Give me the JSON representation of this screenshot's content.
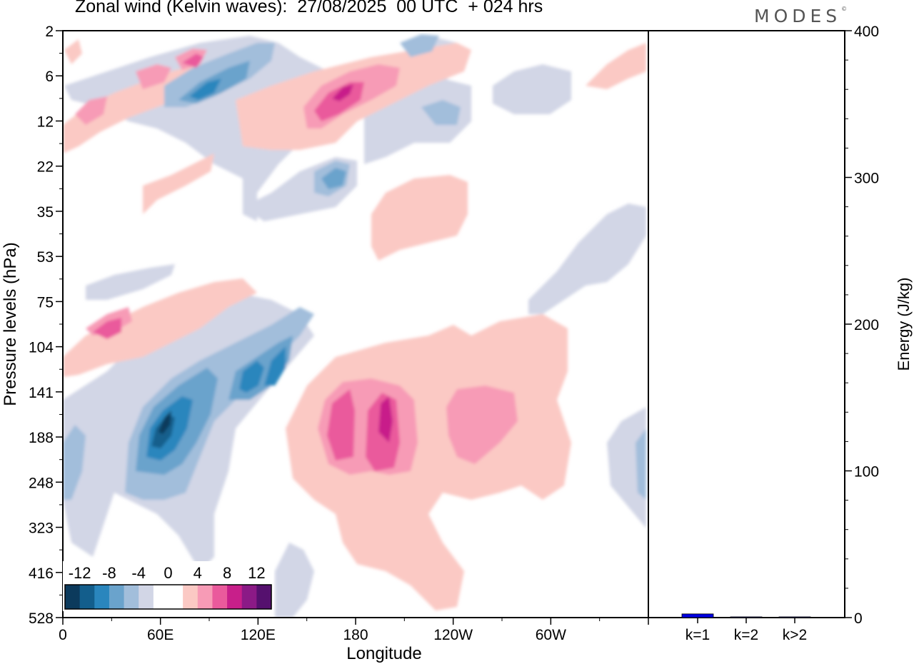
{
  "header": {
    "title": "Zonal wind (Kelvin waves):  27/08/2025  00 UTC  + 024 hrs",
    "brand": "MODES",
    "brand_mark": "©"
  },
  "chart_data": [
    {
      "type": "heatmap",
      "title": "Zonal wind (Kelvin waves):  27/08/2025  00 UTC  + 024 hrs",
      "xlabel": "Longitude",
      "ylabel": "Pressure levels (hPa)",
      "x_ticks": [
        "0",
        "60E",
        "120E",
        "180",
        "120W",
        "60W"
      ],
      "x_tick_positions_deg": [
        0,
        60,
        120,
        180,
        240,
        300
      ],
      "xlim": [
        0,
        360
      ],
      "y_ticks": [
        "2",
        "6",
        "12",
        "22",
        "35",
        "53",
        "75",
        "104",
        "141",
        "188",
        "248",
        "323",
        "416",
        "528"
      ],
      "y_scale": "model levels (top to bottom)",
      "colorbar": {
        "labels": [
          "-12",
          "-8",
          "-4",
          "0",
          "4",
          "8",
          "12"
        ],
        "label_indices": [
          1,
          3,
          5,
          7,
          9,
          11,
          13
        ],
        "colors": [
          "#0c3a5c",
          "#135e8c",
          "#2a86bd",
          "#6aa3cc",
          "#a2bedb",
          "#d2d6e6",
          "#ffffff",
          "#ffffff",
          "#fbc9c4",
          "#f79bb6",
          "#ea5a9c",
          "#c81f8a",
          "#8b1a86",
          "#55106e"
        ]
      },
      "features": [
        {
          "sign": "negative",
          "lon": [
            47,
            75
          ],
          "level": [
            125,
            260
          ],
          "peak": -14
        },
        {
          "sign": "negative",
          "lon": [
            100,
            125
          ],
          "level": [
            104,
            175
          ],
          "peak": -9
        },
        {
          "sign": "positive",
          "lon": [
            160,
            220
          ],
          "level": [
            130,
            260
          ],
          "peak": 10
        },
        {
          "sign": "positive",
          "lon": [
            230,
            285
          ],
          "level": [
            130,
            230
          ],
          "peak": 6
        },
        {
          "sign": "positive",
          "lon": [
            145,
            180
          ],
          "level": [
            4,
            12
          ],
          "peak": 12
        },
        {
          "sign": "negative",
          "lon": [
            60,
            115
          ],
          "level": [
            3,
            12
          ],
          "peak": -7
        }
      ]
    },
    {
      "type": "bar",
      "categories": [
        "k=1",
        "k=2",
        "k>2"
      ],
      "values": [
        2.5,
        0.5,
        0.5
      ],
      "ylabel": "Energy (J/kg)",
      "ylim": [
        0,
        400
      ],
      "y_ticks": [
        "0",
        "100",
        "200",
        "300",
        "400"
      ],
      "bar_color": "#0000e0"
    }
  ]
}
